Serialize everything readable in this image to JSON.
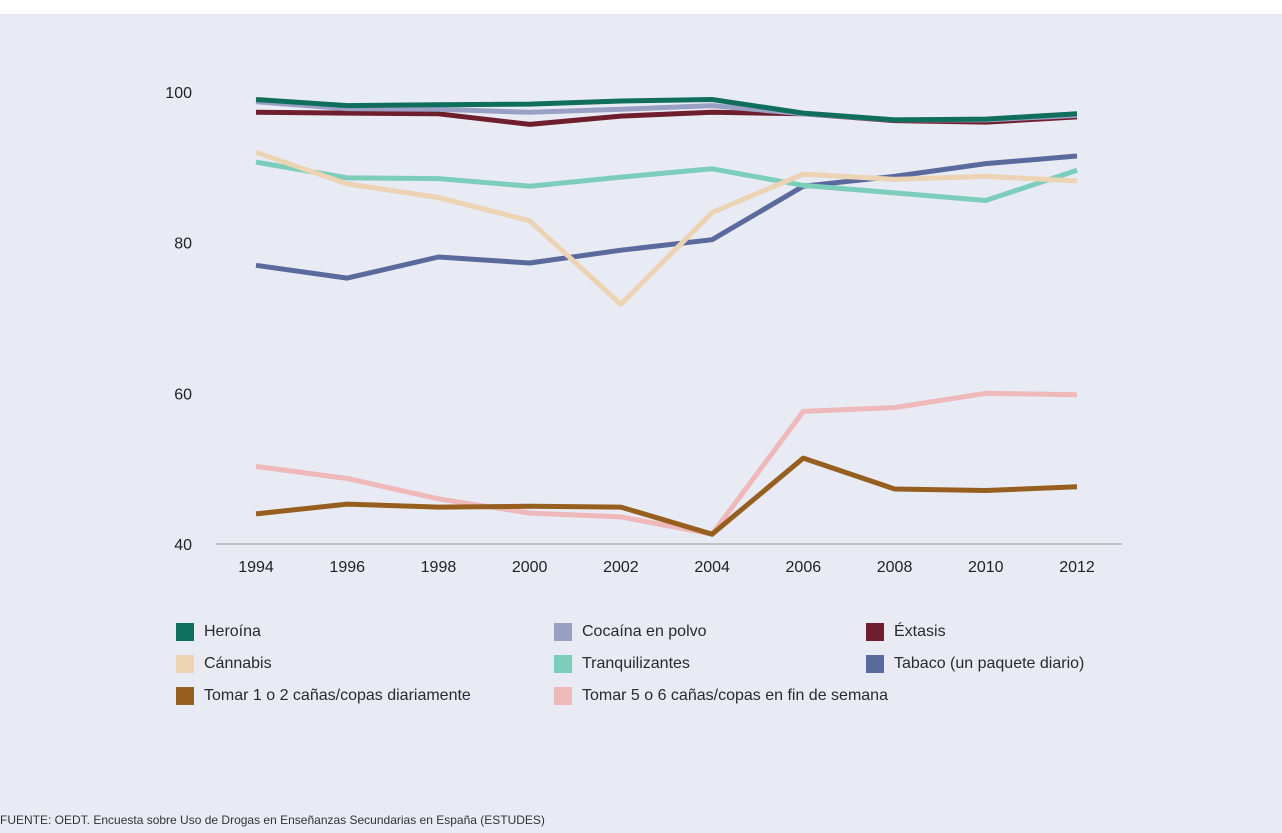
{
  "source": "FUENTE: OEDT. Encuesta sobre Uso de Drogas en Enseñanzas Secundarias en España (ESTUDES)",
  "chart_data": {
    "type": "line",
    "title": "",
    "xlabel": "",
    "ylabel": "",
    "x": [
      "1994",
      "1996",
      "1998",
      "2000",
      "2002",
      "2004",
      "2006",
      "2008",
      "2010",
      "2012"
    ],
    "ylim": [
      40,
      100
    ],
    "yticks": [
      40,
      60,
      80,
      100
    ],
    "grid": false,
    "legend_position": "bottom",
    "series": [
      {
        "name": "Heroína",
        "color": "#0f6e5c",
        "values": [
          99.0,
          98.2,
          98.3,
          98.4,
          98.8,
          99.0,
          97.2,
          96.3,
          96.4,
          97.1
        ]
      },
      {
        "name": "Cocaína en polvo",
        "color": "#9aa0c4",
        "values": [
          98.7,
          97.8,
          97.7,
          97.3,
          97.7,
          98.2,
          97.1,
          96.3,
          96.3,
          96.9
        ]
      },
      {
        "name": "Éxtasis",
        "color": "#6f1e2e",
        "values": [
          97.3,
          97.2,
          97.1,
          95.7,
          96.8,
          97.3,
          97.1,
          96.2,
          96.0,
          96.7
        ]
      },
      {
        "name": "Cánnabis",
        "color": "#ecd3b3",
        "values": [
          92.0,
          87.8,
          86.0,
          82.9,
          71.8,
          84.0,
          89.1,
          88.4,
          88.8,
          88.2
        ]
      },
      {
        "name": "Tranquilizantes",
        "color": "#7dcdbb",
        "values": [
          90.7,
          88.6,
          88.5,
          87.5,
          88.7,
          89.8,
          87.6,
          86.6,
          85.6,
          89.6
        ]
      },
      {
        "name": "Tabaco (un paquete diario)",
        "color": "#5a6a9c",
        "values": [
          77.0,
          75.3,
          78.1,
          77.3,
          79.0,
          80.4,
          87.5,
          88.8,
          90.5,
          91.5
        ]
      },
      {
        "name": "Tomar 1 o 2 cañas/copas diariamente",
        "color": "#975f1f",
        "values": [
          44.0,
          45.3,
          44.9,
          45.0,
          44.9,
          41.3,
          51.4,
          47.3,
          47.1,
          47.6
        ]
      },
      {
        "name": "Tomar 5 o 6 cañas/copas en fin de semana",
        "color": "#efb8bb",
        "values": [
          50.3,
          48.7,
          46.0,
          44.1,
          43.6,
          41.3,
          57.6,
          58.1,
          60.0,
          59.8
        ]
      }
    ]
  }
}
